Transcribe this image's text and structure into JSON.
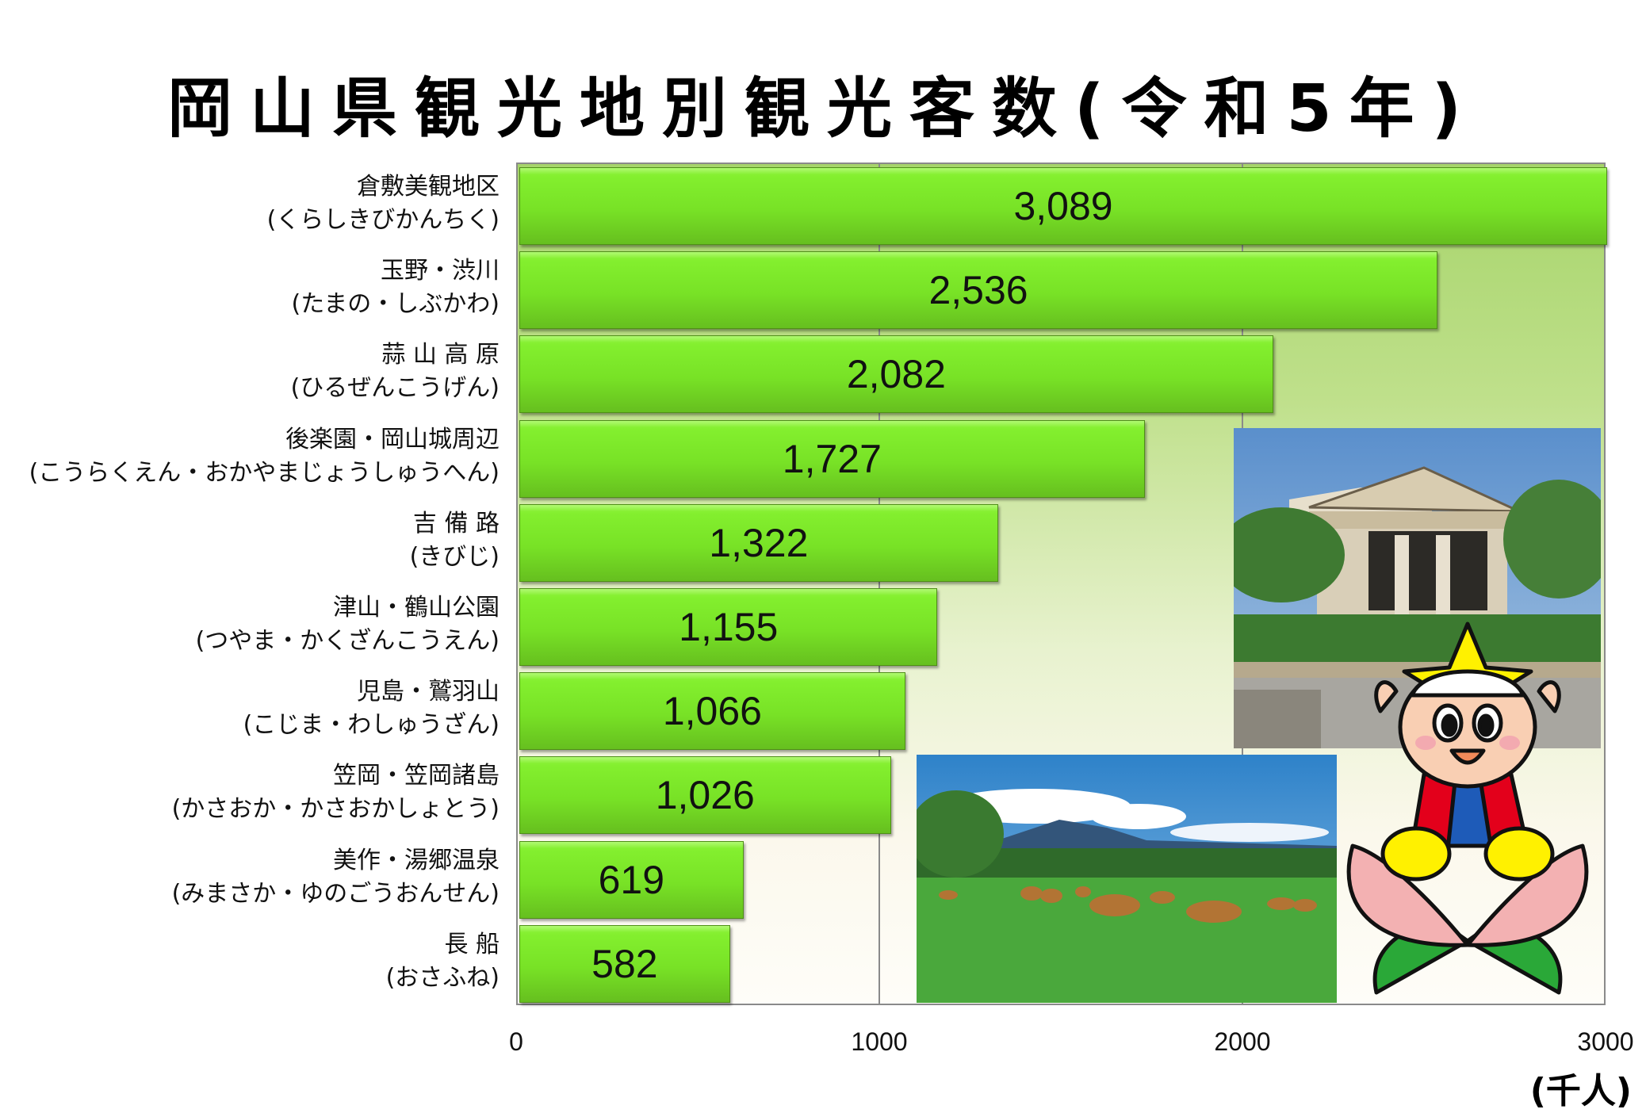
{
  "title": "岡山県観光地別観光客数(令和5年)",
  "unit_label": "(千人)",
  "axis": {
    "ticks": [
      "0",
      "1000",
      "2000",
      "3000"
    ]
  },
  "categories": [
    {
      "name": "倉敷美観地区",
      "reading": "(くらしきびかんちく)",
      "value": 3089,
      "label": "3,089"
    },
    {
      "name": "玉野・渋川",
      "reading": "(たまの・しぶかわ)",
      "value": 2536,
      "label": "2,536"
    },
    {
      "name": "蒜 山 高 原",
      "reading": "(ひるぜんこうげん)",
      "value": 2082,
      "label": "2,082"
    },
    {
      "name": "後楽園・岡山城周辺",
      "reading": "(こうらくえん・おかやまじょうしゅうへん)",
      "value": 1727,
      "label": "1,727"
    },
    {
      "name": "吉 備 路",
      "reading": "(きびじ)",
      "value": 1322,
      "label": "1,322"
    },
    {
      "name": "津山・鶴山公園",
      "reading": "(つやま・かくざんこうえん)",
      "value": 1155,
      "label": "1,155"
    },
    {
      "name": "児島・鷲羽山",
      "reading": "(こじま・わしゅうざん)",
      "value": 1066,
      "label": "1,066"
    },
    {
      "name": "笠岡・笠岡諸島",
      "reading": "(かさおか・かさおかしょとう)",
      "value": 1026,
      "label": "1,026"
    },
    {
      "name": "美作・湯郷温泉",
      "reading": "(みまさか・ゆのごうおんせん)",
      "value": 619,
      "label": "619"
    },
    {
      "name": "長 船",
      "reading": "(おさふね)",
      "value": 582,
      "label": "582"
    }
  ],
  "images": {
    "museum_photo": "classical-museum-building-photo",
    "pasture_photo": "cows-grazing-pasture-photo",
    "mascot": "momotaro-mascot-on-peach"
  },
  "colors": {
    "bar": "#7ee32a",
    "bar_dark": "#5fae1c",
    "plot_top": "#a6d46a",
    "plot_bottom": "#fefdf8",
    "axis": "#8a8a8a"
  },
  "chart_data": {
    "type": "bar",
    "orientation": "horizontal",
    "title": "岡山県観光地別観光客数(令和5年)",
    "categories": [
      "倉敷美観地区",
      "玉野・渋川",
      "蒜山高原",
      "後楽園・岡山城周辺",
      "吉備路",
      "津山・鶴山公園",
      "児島・鷲羽山",
      "笠岡・笠岡諸島",
      "美作・湯郷温泉",
      "長船"
    ],
    "values": [
      3089,
      2536,
      2082,
      1727,
      1322,
      1155,
      1066,
      1026,
      619,
      582
    ],
    "xlabel": "(千人)",
    "ylabel": "",
    "xlim": [
      0,
      3000
    ],
    "xticks": [
      0,
      1000,
      2000,
      3000
    ],
    "grid": "vertical",
    "data_labels": true,
    "legend": "none"
  }
}
